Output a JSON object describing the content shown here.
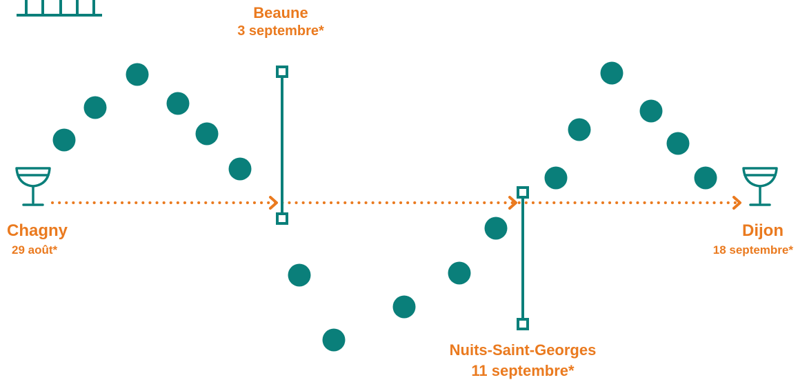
{
  "colors": {
    "accent": "#ea7a1f",
    "teal": "#0a7f7a",
    "background": "#ffffff"
  },
  "icons": {
    "start": "coupe-glass-icon",
    "end": "coupe-glass-icon",
    "top-left": "building-icon"
  },
  "route": {
    "start": {
      "city": "Chagny",
      "date": "29 août*"
    },
    "stop1": {
      "city": "Beaune",
      "date": "3 septembre*"
    },
    "stop2": {
      "city": "Nuits-Saint-Georges",
      "date": "11 septembre*"
    },
    "end": {
      "city": "Dijon",
      "date": "18 septembre*"
    }
  }
}
